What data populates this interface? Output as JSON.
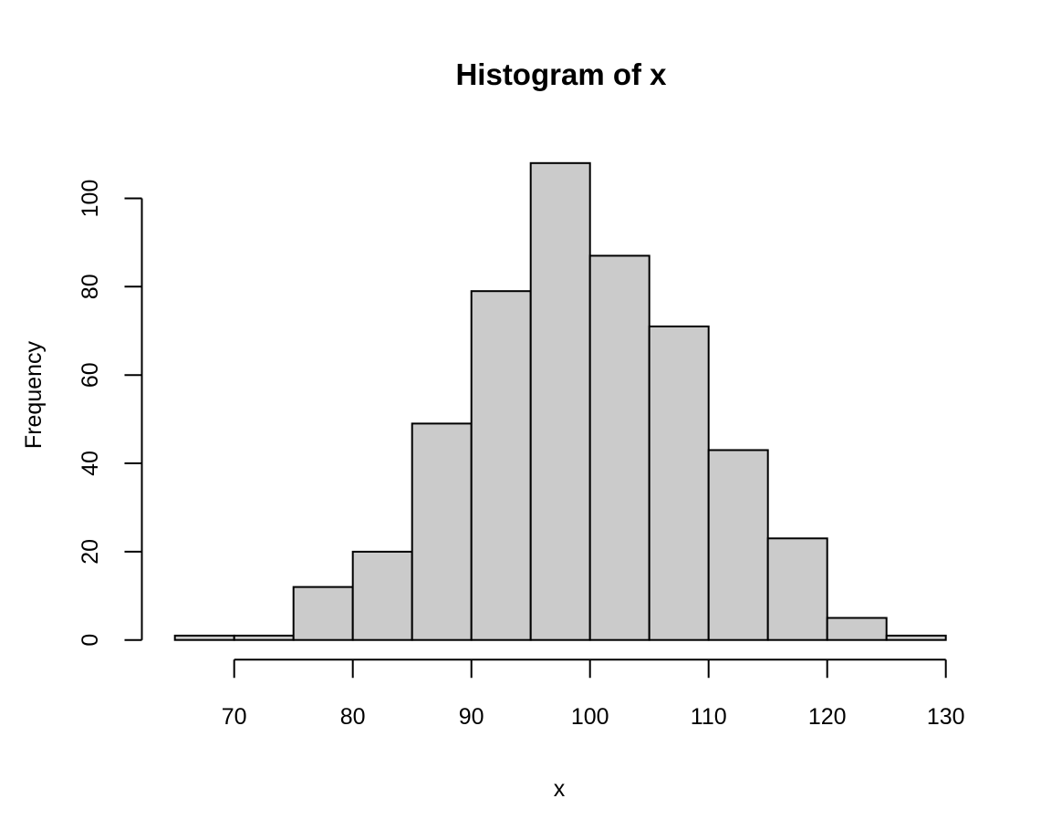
{
  "title": "Histogram of x",
  "chart_data": {
    "type": "bar",
    "subtype": "histogram",
    "title": "Histogram of x",
    "xlabel": "x",
    "ylabel": "Frequency",
    "bin_edges": [
      65,
      70,
      75,
      80,
      85,
      90,
      95,
      100,
      105,
      110,
      115,
      120,
      125,
      130
    ],
    "counts": [
      1,
      1,
      12,
      20,
      49,
      79,
      108,
      87,
      71,
      43,
      23,
      5,
      1
    ],
    "total_n": 500,
    "x_ticks": [
      70,
      80,
      90,
      100,
      110,
      120,
      130
    ],
    "y_ticks": [
      0,
      20,
      40,
      60,
      80,
      100
    ],
    "xlim": [
      65,
      130
    ],
    "ylim": [
      0,
      108
    ],
    "grid": false,
    "legend_position": "none",
    "colors": {
      "bar_fill": "#CBCBCB",
      "bar_stroke": "#000000",
      "axis": "#000000",
      "text": "#000000",
      "background": "#FFFFFF"
    }
  }
}
